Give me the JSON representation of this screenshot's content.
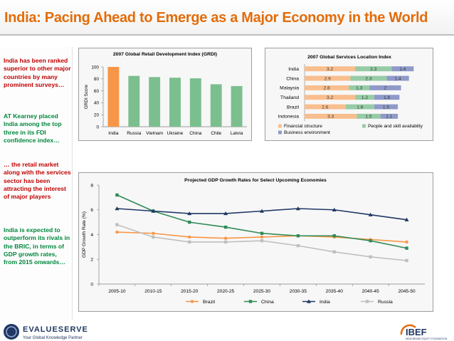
{
  "slide_title": "India: Pacing Ahead to Emerge as a Major Economy in the World",
  "sidebar_notes": [
    {
      "text": "India has been ranked superior to other major countries by many prominent surveys…",
      "color": "#c00000"
    },
    {
      "text": "AT Kearney placed India among the top three in its FDI confidence index…",
      "color": "#00863d"
    },
    {
      "text": "… the retail market along with the services sector has been attracting the interest of major players",
      "color": "#c00000"
    },
    {
      "text": "India is expected to outperform its rivals in the BRIC, in terms of GDP growth rates, from 2015 onwards…",
      "color": "#00863d"
    }
  ],
  "logos": {
    "left_name": "EVALUESERVE",
    "left_tagline": "Your Global Knowledge Partner",
    "right_name": "IBEF",
    "right_tagline": "INDIA BRAND EQUITY FOUNDATION"
  },
  "chart_data": [
    {
      "type": "bar",
      "title": "2007 Global Retail Development Index (GRDI)",
      "ylabel": "GRDI Score",
      "xlabel": "",
      "ylim": [
        0,
        100
      ],
      "yticks": [
        0,
        20,
        40,
        60,
        80,
        100
      ],
      "categories": [
        "India",
        "Russia",
        "Vietnam",
        "Ukraine",
        "China",
        "Chile",
        "Latvia"
      ],
      "values": [
        100,
        85,
        83,
        82,
        81,
        71,
        68
      ],
      "colors": [
        "#f79646",
        "#7bbf8e",
        "#7bbf8e",
        "#7bbf8e",
        "#7bbf8e",
        "#7bbf8e",
        "#7bbf8e"
      ],
      "grid": false
    },
    {
      "type": "bar",
      "orientation": "horizontal",
      "stacked": true,
      "title": "2007 Global Services Location Index",
      "categories": [
        "India",
        "China",
        "Malaysia",
        "Thailand",
        "Brazil",
        "Indonesia"
      ],
      "series": [
        {
          "name": "Financial structure",
          "values": [
            3.2,
            2.9,
            2.8,
            3.2,
            2.6,
            3.3
          ],
          "color": "#f9be8e"
        },
        {
          "name": "People and skill availablity",
          "values": [
            2.3,
            2.3,
            1.3,
            1.2,
            1.8,
            1.5
          ],
          "color": "#96cca5"
        },
        {
          "name": "Business environment",
          "values": [
            1.4,
            1.4,
            2,
            1.6,
            1.5,
            1.1
          ],
          "color": "#8f9ac9"
        }
      ],
      "legend": "bottom"
    },
    {
      "type": "line",
      "title": "Projected GDP Growth Rates for Select Upcoming Economies",
      "ylabel": "GDP Growth Rate (%)",
      "xlabel": "",
      "ylim": [
        0,
        8
      ],
      "yticks": [
        0,
        2,
        4,
        6,
        8
      ],
      "categories": [
        "2005-10",
        "2010-15",
        "2015-20",
        "2020-25",
        "2025-30",
        "2030-35",
        "2035-40",
        "2040-45",
        "2045-50"
      ],
      "series": [
        {
          "name": "Brazil",
          "values": [
            4.2,
            4.1,
            3.8,
            3.7,
            3.8,
            3.9,
            3.8,
            3.6,
            3.4
          ],
          "color": "#f79646",
          "marker": "circle"
        },
        {
          "name": "China",
          "values": [
            7.2,
            5.9,
            5.0,
            4.6,
            4.1,
            3.9,
            3.9,
            3.5,
            2.9
          ],
          "color": "#2e8b57",
          "marker": "square"
        },
        {
          "name": "India",
          "values": [
            6.1,
            5.9,
            5.7,
            5.7,
            5.9,
            6.1,
            6.0,
            5.6,
            5.2
          ],
          "color": "#1f3864",
          "marker": "triangle"
        },
        {
          "name": "Russia",
          "values": [
            4.8,
            3.8,
            3.4,
            3.4,
            3.5,
            3.1,
            2.6,
            2.2,
            1.9
          ],
          "color": "#bfbfbf",
          "marker": "square"
        }
      ],
      "legend": "bottom",
      "grid": false
    }
  ]
}
